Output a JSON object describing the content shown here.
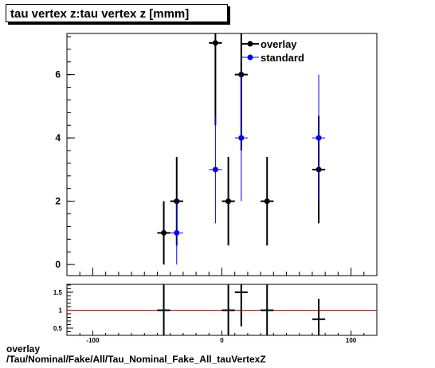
{
  "title": "tau vertex z:tau vertex z [mmm]",
  "caption": {
    "line1": "overlay",
    "line2": "/Tau/Nominal/Fake/All/Tau_Nominal_Fake_All_tauVertexZ"
  },
  "colors": {
    "overlay": "#000000",
    "standard": "#0000ff",
    "ratio_line": "#cc0000"
  },
  "chart_data": [
    {
      "type": "scatter",
      "xlim": [
        -120,
        120
      ],
      "ylim": [
        -0.35,
        7.3
      ],
      "y_ticks": [
        0,
        2,
        4,
        6
      ],
      "x_ticks": [
        -100,
        0,
        100
      ],
      "legend": {
        "placement": "top-right",
        "entries": [
          "overlay",
          "standard"
        ]
      },
      "series": [
        {
          "name": "overlay",
          "color": "#000000",
          "points": [
            {
              "x": -45,
              "y": 1,
              "xerr": 5,
              "ylo": 0,
              "yhi": 2
            },
            {
              "x": -35,
              "y": 2,
              "xerr": 5,
              "ylo": 0.6,
              "yhi": 3.4
            },
            {
              "x": -5,
              "y": 7,
              "xerr": 5,
              "ylo": 4.4,
              "yhi": 9.6
            },
            {
              "x": 5,
              "y": 2,
              "xerr": 5,
              "ylo": 0.6,
              "yhi": 3.4
            },
            {
              "x": 15,
              "y": 6,
              "xerr": 5,
              "ylo": 3.6,
              "yhi": 8.4
            },
            {
              "x": 35,
              "y": 2,
              "xerr": 5,
              "ylo": 0.6,
              "yhi": 3.4
            },
            {
              "x": 75,
              "y": 3,
              "xerr": 5,
              "ylo": 1.3,
              "yhi": 4.7
            }
          ]
        },
        {
          "name": "standard",
          "color": "#0000ff",
          "points": [
            {
              "x": -35,
              "y": 1,
              "xerr": 5,
              "ylo": 0,
              "yhi": 2
            },
            {
              "x": -5,
              "y": 3,
              "xerr": 5,
              "ylo": 1.3,
              "yhi": 4.7
            },
            {
              "x": 15,
              "y": 4,
              "xerr": 5,
              "ylo": 2,
              "yhi": 6
            },
            {
              "x": 75,
              "y": 4,
              "xerr": 5,
              "ylo": 2,
              "yhi": 6
            }
          ]
        }
      ]
    },
    {
      "type": "scatter",
      "xlim": [
        -120,
        120
      ],
      "ylim": [
        0.3,
        1.72
      ],
      "y_ticks": [
        0.5,
        1,
        1.5
      ],
      "x_ticks": [
        -100,
        0,
        100
      ],
      "reference_line": 1,
      "series": [
        {
          "color": "#000000",
          "points": [
            {
              "x": -45,
              "y": 1,
              "xerr": 5,
              "ylo": -0.5,
              "yhi": 2.5
            },
            {
              "x": 5,
              "y": 1,
              "xerr": 5,
              "ylo": -0.5,
              "yhi": 2.5
            },
            {
              "x": 15,
              "y": 1.5,
              "xerr": 5,
              "ylo": 0.55,
              "yhi": 2.45
            },
            {
              "x": 35,
              "y": 1,
              "xerr": 5,
              "ylo": -0.5,
              "yhi": 2.5
            },
            {
              "x": 75,
              "y": 0.75,
              "xerr": 5,
              "ylo": 0.25,
              "yhi": 1.32
            }
          ]
        }
      ]
    }
  ]
}
